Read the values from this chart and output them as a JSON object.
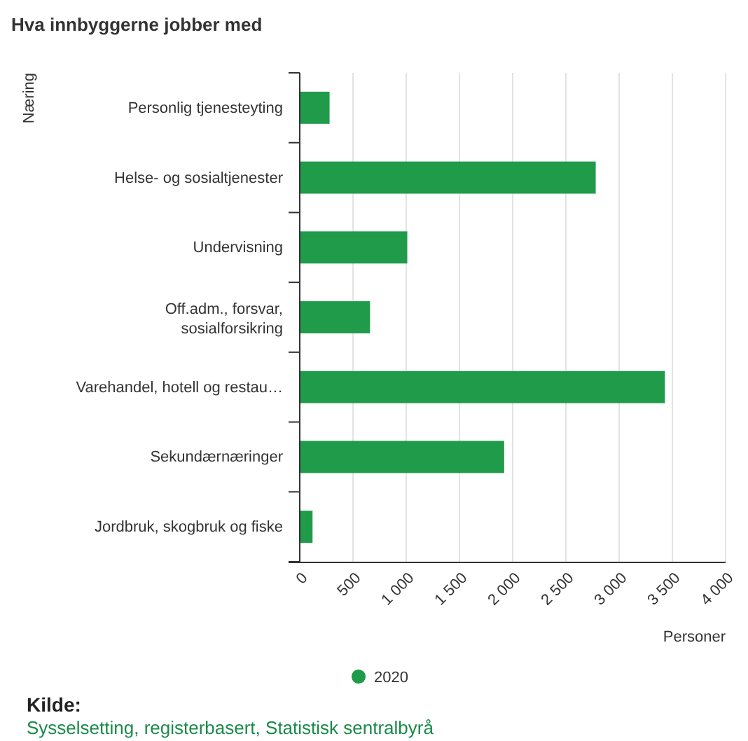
{
  "chart_data": {
    "type": "bar",
    "orientation": "horizontal",
    "title": "Hva innbyggerne jobber med",
    "ylabel": "Næring",
    "xlabel": "Personer",
    "categories": [
      "Personlig tjenesteyting",
      "Helse- og sosialtjenester",
      "Undervisning",
      "Off.adm., forsvar, sosialforsikring",
      "Varehandel, hotell og restau…",
      "Sekundærnæringer",
      "Jordbruk, skogbruk og fiske"
    ],
    "series": [
      {
        "name": "2020",
        "color": "#1f9b4a",
        "values": [
          280,
          2780,
          1010,
          660,
          3430,
          1920,
          120
        ]
      }
    ],
    "xlim": [
      0,
      4000
    ],
    "xticks": [
      0,
      500,
      {
        "value": 1000,
        "label": "1 000"
      },
      {
        "value": 1500,
        "label": "1 500"
      },
      {
        "value": 2000,
        "label": "2 000"
      },
      {
        "value": 2500,
        "label": "2 500"
      },
      {
        "value": 3000,
        "label": "3 000"
      },
      {
        "value": 3500,
        "label": "3 500"
      },
      {
        "value": 4000,
        "label": "4 000"
      }
    ],
    "grid": "x",
    "legend": "bottom",
    "marker": "circle",
    "annotations": [
      "Kilde:",
      "Sysselsetting, registerbasert, Statistisk sentralbyrå"
    ]
  }
}
